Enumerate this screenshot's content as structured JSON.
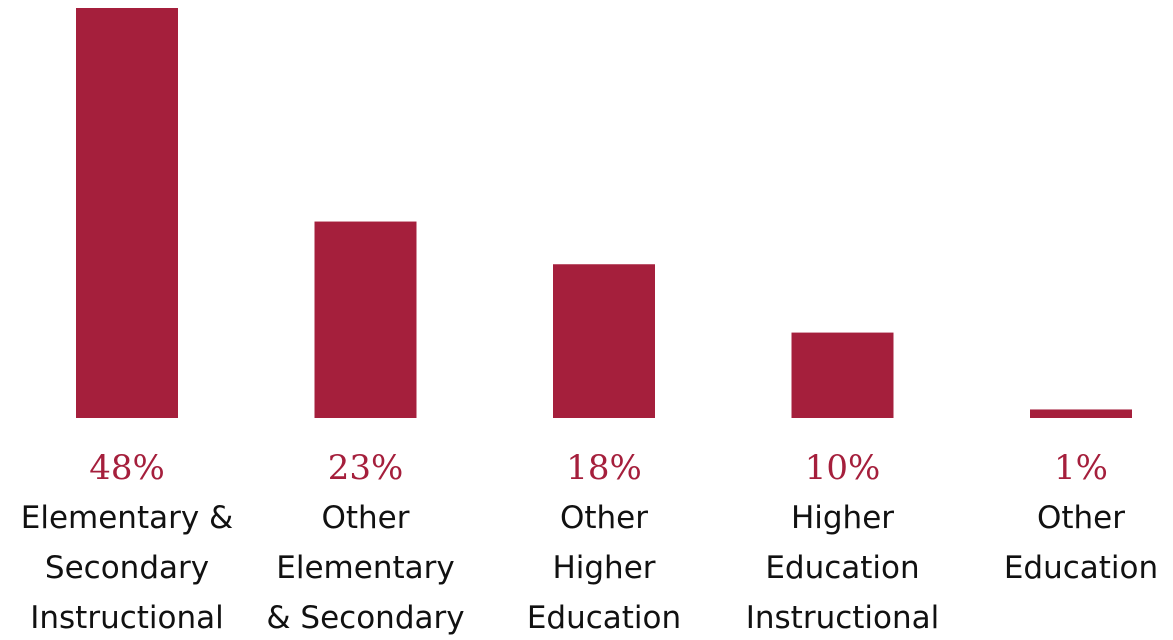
{
  "chart_data": {
    "type": "bar",
    "categories": [
      [
        "Elementary &",
        "Secondary",
        "Instructional"
      ],
      [
        "Other",
        "Elementary",
        "& Secondary"
      ],
      [
        "Other",
        "Higher",
        "Education"
      ],
      [
        "Higher",
        "Education",
        "Instructional"
      ],
      [
        "Other",
        "Education"
      ]
    ],
    "values": [
      48,
      23,
      18,
      10,
      1
    ],
    "value_labels": [
      "48%",
      "23%",
      "18%",
      "10%",
      "1%"
    ],
    "unit": "%",
    "title": "",
    "xlabel": "",
    "ylabel": "",
    "ylim": [
      0,
      48
    ],
    "grid": false,
    "axes_visible": false,
    "bar_color": "#A51F3C"
  }
}
